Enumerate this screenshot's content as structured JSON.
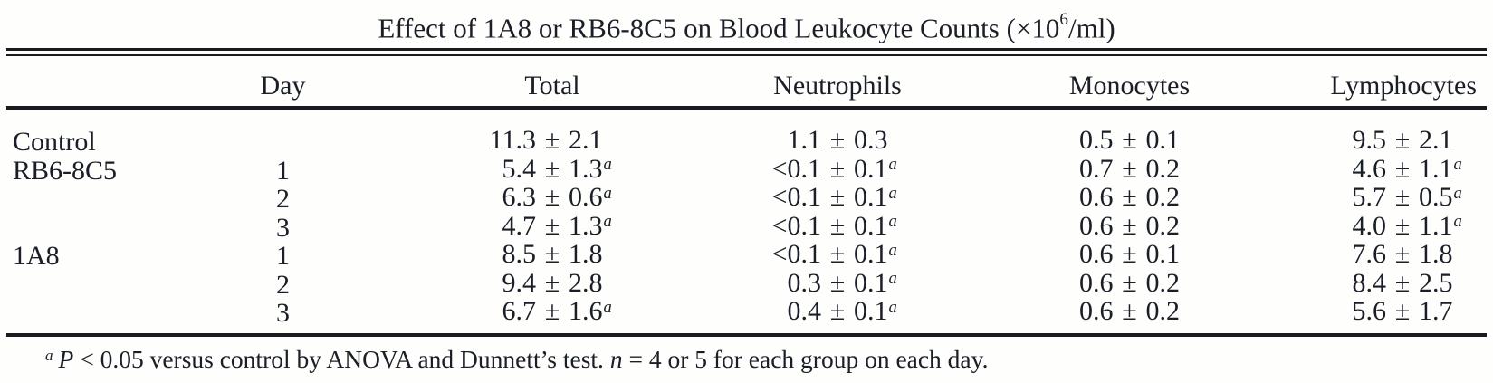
{
  "pm_sign": "±",
  "title": {
    "prefix": "Effect of 1A8 or RB6-8C5 on Blood Leukocyte Counts (×10",
    "exponent": "6",
    "suffix": "/ml)"
  },
  "table": {
    "columns": [
      "",
      "Day",
      "Total",
      "Neutrophils",
      "Monocytes",
      "Lymphocytes"
    ],
    "rows": [
      {
        "group": "Control",
        "day": "",
        "total": {
          "value": "11.3",
          "error": "2.1",
          "sup": ""
        },
        "neutrophils": {
          "value": "1.1",
          "error": "0.3",
          "sup": ""
        },
        "monocytes": {
          "value": "0.5",
          "error": "0.1",
          "sup": ""
        },
        "lymphocytes": {
          "value": "9.5",
          "error": "2.1",
          "sup": ""
        }
      },
      {
        "group": "RB6-8C5",
        "day": "1",
        "total": {
          "value": "5.4",
          "error": "1.3",
          "sup": "a"
        },
        "neutrophils": {
          "value": "<0.1",
          "error": "0.1",
          "sup": "a"
        },
        "monocytes": {
          "value": "0.7",
          "error": "0.2",
          "sup": ""
        },
        "lymphocytes": {
          "value": "4.6",
          "error": "1.1",
          "sup": "a"
        }
      },
      {
        "group": "",
        "day": "2",
        "total": {
          "value": "6.3",
          "error": "0.6",
          "sup": "a"
        },
        "neutrophils": {
          "value": "<0.1",
          "error": "0.1",
          "sup": "a"
        },
        "monocytes": {
          "value": "0.6",
          "error": "0.2",
          "sup": ""
        },
        "lymphocytes": {
          "value": "5.7",
          "error": "0.5",
          "sup": "a"
        }
      },
      {
        "group": "",
        "day": "3",
        "total": {
          "value": "4.7",
          "error": "1.3",
          "sup": "a"
        },
        "neutrophils": {
          "value": "<0.1",
          "error": "0.1",
          "sup": "a"
        },
        "monocytes": {
          "value": "0.6",
          "error": "0.2",
          "sup": ""
        },
        "lymphocytes": {
          "value": "4.0",
          "error": "1.1",
          "sup": "a"
        }
      },
      {
        "group": "1A8",
        "day": "1",
        "total": {
          "value": "8.5",
          "error": "1.8",
          "sup": ""
        },
        "neutrophils": {
          "value": "<0.1",
          "error": "0.1",
          "sup": "a"
        },
        "monocytes": {
          "value": "0.6",
          "error": "0.1",
          "sup": ""
        },
        "lymphocytes": {
          "value": "7.6",
          "error": "1.8",
          "sup": ""
        }
      },
      {
        "group": "",
        "day": "2",
        "total": {
          "value": "9.4",
          "error": "2.8",
          "sup": ""
        },
        "neutrophils": {
          "value": "0.3",
          "error": "0.1",
          "sup": "a"
        },
        "monocytes": {
          "value": "0.6",
          "error": "0.2",
          "sup": ""
        },
        "lymphocytes": {
          "value": "8.4",
          "error": "2.5",
          "sup": ""
        }
      },
      {
        "group": "",
        "day": "3",
        "total": {
          "value": "6.7",
          "error": "1.6",
          "sup": "a"
        },
        "neutrophils": {
          "value": "0.4",
          "error": "0.1",
          "sup": "a"
        },
        "monocytes": {
          "value": "0.6",
          "error": "0.2",
          "sup": ""
        },
        "lymphocytes": {
          "value": "5.6",
          "error": "1.7",
          "sup": ""
        }
      }
    ]
  },
  "footnote": {
    "sup": "a",
    "p_italic": "P",
    "text1": "< 0.05 versus control by ANOVA and Dunnett’s test. ",
    "n_italic": "n",
    "text2": "= 4 or 5 for each group on each day."
  }
}
